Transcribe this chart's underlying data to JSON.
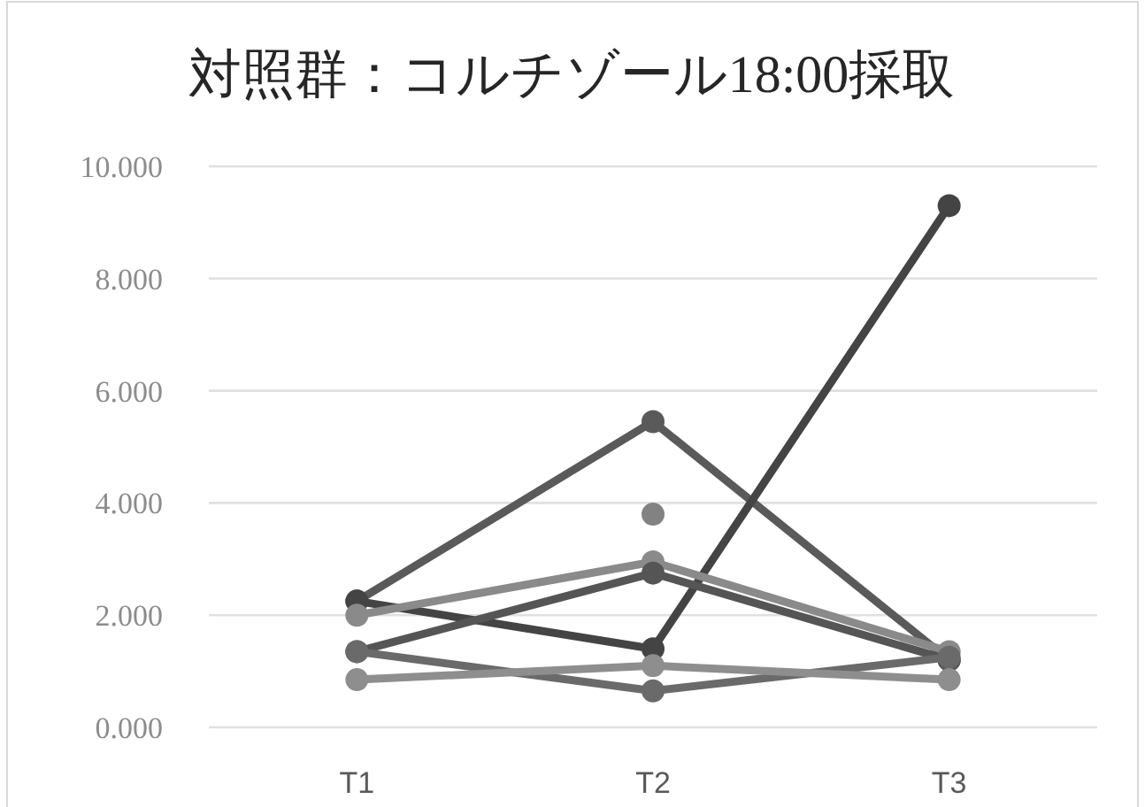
{
  "chart_data": {
    "type": "line",
    "title": "対照群：コルチゾール18:00採取",
    "categories": [
      "T1",
      "T2",
      "T3"
    ],
    "ylim": [
      0,
      10
    ],
    "yticks": [
      {
        "value": 0,
        "label": "0.000"
      },
      {
        "value": 2,
        "label": "2.000"
      },
      {
        "value": 4,
        "label": "4.000"
      },
      {
        "value": 6,
        "label": "6.000"
      },
      {
        "value": 8,
        "label": "8.000"
      },
      {
        "value": 10,
        "label": "10.000"
      }
    ],
    "grid": "y",
    "marker": "circle",
    "series": [
      {
        "color": "#5a5a5a",
        "values": [
          2.25,
          5.45,
          1.2
        ]
      },
      {
        "color": "#444444",
        "values": [
          2.25,
          1.4,
          9.3
        ]
      },
      {
        "color": "#8a8a8a",
        "values": [
          2.0,
          2.95,
          1.35
        ]
      },
      {
        "color": "#555555",
        "values": [
          1.35,
          2.75,
          1.2
        ]
      },
      {
        "color": "#6a6a6a",
        "values": [
          1.35,
          0.65,
          1.25
        ]
      },
      {
        "color": "#8e8e8e",
        "values": [
          0.85,
          1.1,
          0.85
        ]
      },
      {
        "color": "#828282",
        "values": [
          null,
          3.8,
          null
        ]
      }
    ]
  }
}
